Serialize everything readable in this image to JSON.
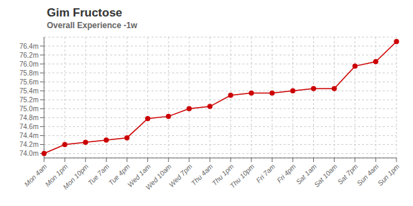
{
  "chart_data": {
    "type": "line",
    "title": "Gim Fructose",
    "subtitle": "Overall Experience -1w",
    "categories": [
      "Mon 4am",
      "Mon 1pm",
      "Mon 10pm",
      "Tue 7am",
      "Tue 4pm",
      "Wed 1am",
      "Wed 10am",
      "Wed 7pm",
      "Thu 4am",
      "Thu 1pm",
      "Thu 10pm",
      "Fri 7am",
      "Fri 4pm",
      "Sat 1am",
      "Sat 10am",
      "Sat 7pm",
      "Sun 4am",
      "Sun 1pm"
    ],
    "values": [
      74.0,
      74.2,
      74.25,
      74.3,
      74.35,
      74.78,
      74.83,
      75.0,
      75.05,
      75.3,
      75.35,
      75.35,
      75.4,
      75.45,
      75.45,
      75.95,
      76.05,
      76.5
    ],
    "color": "#cc0000",
    "marker": "circle",
    "ylim": [
      73.9,
      76.6
    ],
    "yticks": [
      {
        "value": 74.0,
        "label": "74.0m"
      },
      {
        "value": 74.2,
        "label": "74.2m"
      },
      {
        "value": 74.4,
        "label": "74.4m"
      },
      {
        "value": 74.6,
        "label": "74.6m"
      },
      {
        "value": 74.8,
        "label": "74.8m"
      },
      {
        "value": 75.0,
        "label": "75.0m"
      },
      {
        "value": 75.2,
        "label": "75.2m"
      },
      {
        "value": 75.4,
        "label": "75.4m"
      },
      {
        "value": 75.6,
        "label": "75.6m"
      },
      {
        "value": 75.8,
        "label": "75.8m"
      },
      {
        "value": 76.0,
        "label": "76.0m"
      },
      {
        "value": 76.2,
        "label": "76.2m"
      },
      {
        "value": 76.4,
        "label": "76.4m"
      }
    ],
    "grid": true
  }
}
